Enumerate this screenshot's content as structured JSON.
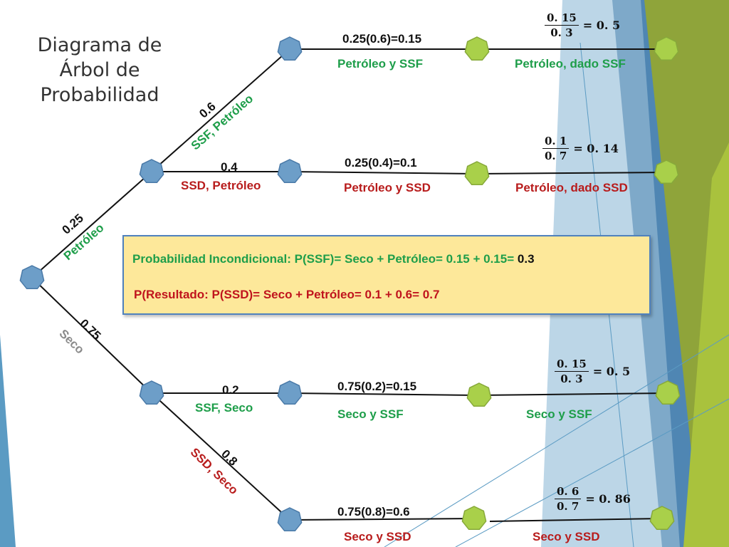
{
  "title": "Diagrama de Árbol de Probabilidad",
  "branches": {
    "root_top_prob": "0.25",
    "root_top_label": "Petróleo",
    "root_bottom_prob": "0.75",
    "root_bottom_label": "Seco",
    "petroleo_ssf_prob": "0.6",
    "petroleo_ssf_label": "SSF, Petróleo",
    "petroleo_ssd_prob": "0.4",
    "petroleo_ssd_label": "SSD, Petróleo",
    "seco_ssf_prob": "0.2",
    "seco_ssf_label": "SSF, Seco",
    "seco_ssd_prob": "0.8",
    "seco_ssd_label": "SSD, Seco"
  },
  "joint": [
    {
      "calc": "0.25(0.6)=0.15",
      "label": "Petróleo y SSF"
    },
    {
      "calc": "0.25(0.4)=0.1",
      "label": "Petróleo y SSD"
    },
    {
      "calc": "0.75(0.2)=0.15",
      "label": "Seco y SSF"
    },
    {
      "calc": "0.75(0.8)=0.6",
      "label": "Seco y SSD"
    }
  ],
  "posterior": [
    {
      "num": "0. 15",
      "den": "0. 3",
      "result": "= 0. 5",
      "label": "Petróleo, dado SSF"
    },
    {
      "num": "0. 1",
      "den": "0. 7",
      "result": "= 0. 14",
      "label": "Petróleo, dado SSD"
    },
    {
      "num": "0. 15",
      "den": "0. 3",
      "result": "= 0. 5",
      "label": "Seco y SSF"
    },
    {
      "num": "0. 6",
      "den": "0. 7",
      "result": "= 0. 86",
      "label": "Seco y SSD"
    }
  ],
  "summary": {
    "line1": "Probabilidad Incondicional: P(SSF)= Seco + Petróleo= 0.15 + 0.15=",
    "line1_answer": "0.3",
    "line2": "P(Resultado: P(SSD)= Seco + Petróleo= 0.1 + 0.6= 0.7"
  },
  "colors": {
    "node_blue": "#6d9ec8",
    "node_green": "#a9d04a",
    "label_green": "#1e9e4a",
    "label_red": "#b81c1c",
    "box_fill": "#fde89a",
    "box_border": "#4f81bd"
  }
}
